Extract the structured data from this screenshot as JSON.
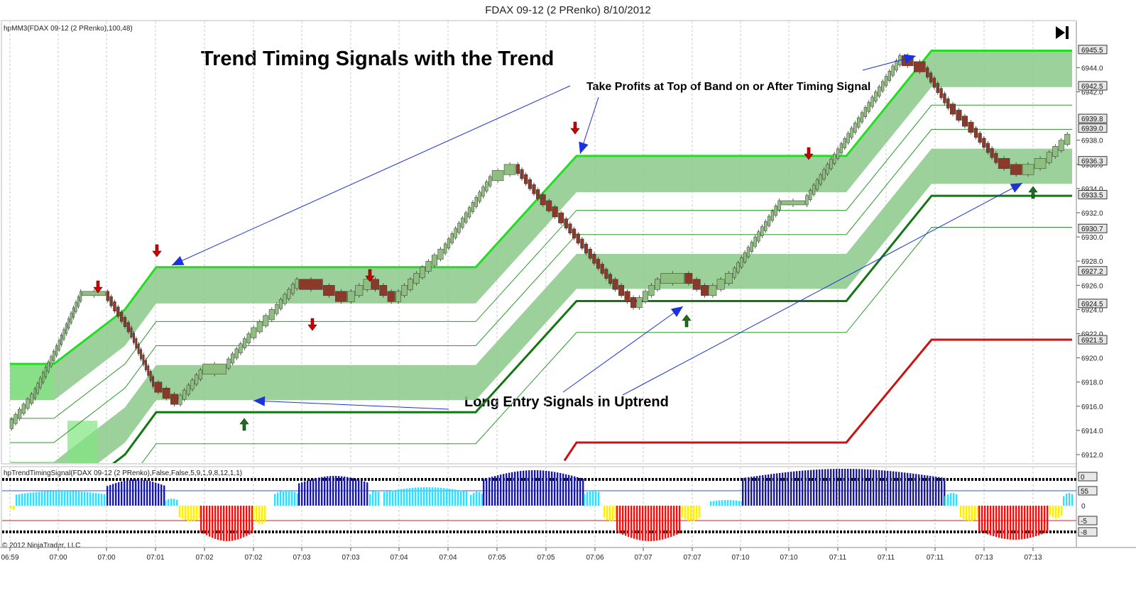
{
  "window_title": "FDAX 09-12 (2 PRenko)  8/10/2012",
  "price_panel": {
    "indicator_label": "hpMM3(FDAX 09-12 (2 PRenko),100,48)",
    "play_icon": "skip-to-end-icon",
    "y_ticks": [
      "6944.0",
      "6942.0",
      "6938.0",
      "6936.0",
      "6934.0",
      "6932.0",
      "6930.0",
      "6928.0",
      "6926.0",
      "6924.0",
      "6922.0",
      "6920.0",
      "6918.0",
      "6916.0",
      "6914.0",
      "6912.0"
    ],
    "price_tags": [
      "6945.5",
      "6942.5",
      "6939.8",
      "6939.0",
      "6936.3",
      "6933.5",
      "6930.7",
      "6927.2",
      "6924.5",
      "6921.5"
    ]
  },
  "annotations": {
    "title": "Trend Timing Signals with the Trend",
    "take_profits": "Take Profits at Top of Band on or After Timing Signal",
    "long_entry": "Long Entry Signals in Uptrend"
  },
  "osc_panel": {
    "label": "hpTrendTimingSignal(FDAX 09-12 (2 PRenko),False,False,5,9,1,9,8,12,1,1)",
    "y_ticks": [
      "0"
    ],
    "right_tags": [
      "0",
      "55",
      "-5",
      "-8"
    ]
  },
  "copyright": "© 2012 NinjaTrader, LLC",
  "time_ticks": [
    "06:59",
    "07:00",
    "07:00",
    "07:01",
    "07:02",
    "07:02",
    "07:03",
    "07:03",
    "07:04",
    "07:04",
    "07:05",
    "07:05",
    "07:06",
    "07:07",
    "07:07",
    "07:10",
    "07:10",
    "07:11",
    "07:11",
    "07:11",
    "07:13",
    "07:13"
  ],
  "colors": {
    "band_fill": "#8cc98a",
    "upper_line": "#22dd22",
    "mid_line": "#117711",
    "red_line": "#cc1111",
    "up_bar": "#8fbf7f",
    "down_bar": "#8b3a2a",
    "arrow_down": "#cc0000",
    "arrow_up": "#1f6e1f",
    "pointer": "#1a33dd",
    "osc_dark": "#1a1aa0",
    "osc_cyan": "#33ddff",
    "osc_yellow": "#ffee00",
    "osc_red": "#ee1111"
  },
  "chart_data": {
    "type": "line",
    "title": "FDAX 09-12 (2 PRenko)  8/10/2012",
    "xlabel": "",
    "ylabel": "",
    "ylim": [
      6911.0,
      6946.5
    ],
    "x": [
      "06:59",
      "07:00",
      "07:00",
      "07:01",
      "07:02",
      "07:02",
      "07:03",
      "07:03",
      "07:04",
      "07:04",
      "07:05",
      "07:05",
      "07:06",
      "07:07",
      "07:07",
      "07:10",
      "07:10",
      "07:11",
      "07:11",
      "07:11",
      "07:13",
      "07:13"
    ],
    "series": [
      {
        "values": [
          [
            0,
            6914.5
          ],
          [
            1,
            6917
          ],
          [
            2,
            6921
          ],
          [
            3,
            6925.5
          ],
          [
            4,
            6925.5
          ],
          [
            5,
            6922.5
          ],
          [
            6,
            6918
          ],
          [
            7,
            6916.5
          ],
          [
            8,
            6919
          ],
          [
            9,
            6919.5
          ],
          [
            10,
            6922
          ],
          [
            11,
            6924
          ],
          [
            12,
            6926.5
          ],
          [
            13,
            6926
          ],
          [
            14,
            6925
          ],
          [
            15,
            6926.5
          ],
          [
            16,
            6925
          ],
          [
            17,
            6927
          ],
          [
            18,
            6929
          ],
          [
            19,
            6932
          ],
          [
            20,
            6935
          ],
          [
            21,
            6936
          ],
          [
            22,
            6933.5
          ],
          [
            23,
            6931.5
          ],
          [
            24,
            6929
          ],
          [
            25,
            6926.5
          ],
          [
            26,
            6924.5
          ],
          [
            27,
            6926.5
          ],
          [
            28,
            6927
          ],
          [
            29,
            6925.5
          ],
          [
            30,
            6927
          ],
          [
            31,
            6930
          ],
          [
            32,
            6933
          ],
          [
            33,
            6933
          ],
          [
            34,
            6936
          ],
          [
            35,
            6939
          ],
          [
            36,
            6942
          ],
          [
            37,
            6945
          ],
          [
            38,
            6944
          ],
          [
            39,
            6941
          ],
          [
            40,
            6939
          ],
          [
            41,
            6936.5
          ],
          [
            42,
            6935.5
          ],
          [
            43,
            6936.5
          ],
          [
            44,
            6938.5
          ]
        ]
      },
      {
        "values": [
          [
            0,
            6919.5
          ],
          [
            1,
            6919.5
          ],
          [
            2,
            6924
          ],
          [
            3,
            6924
          ],
          [
            4,
            6927.5
          ],
          [
            5,
            6927.5
          ],
          [
            6,
            6936.8
          ],
          [
            7,
            6936.8
          ],
          [
            8,
            6945.5
          ],
          [
            9,
            6945.5
          ]
        ]
      },
      {
        "values": [
          [
            0,
            6915.0
          ],
          [
            1,
            6915.0
          ],
          [
            2,
            6919.0
          ],
          [
            3,
            6919.0
          ],
          [
            4,
            6923.5
          ],
          [
            5,
            6923.5
          ],
          [
            6,
            6933.5
          ],
          [
            7,
            6933.5
          ]
        ]
      }
    ],
    "grid": true,
    "legend": "none"
  }
}
